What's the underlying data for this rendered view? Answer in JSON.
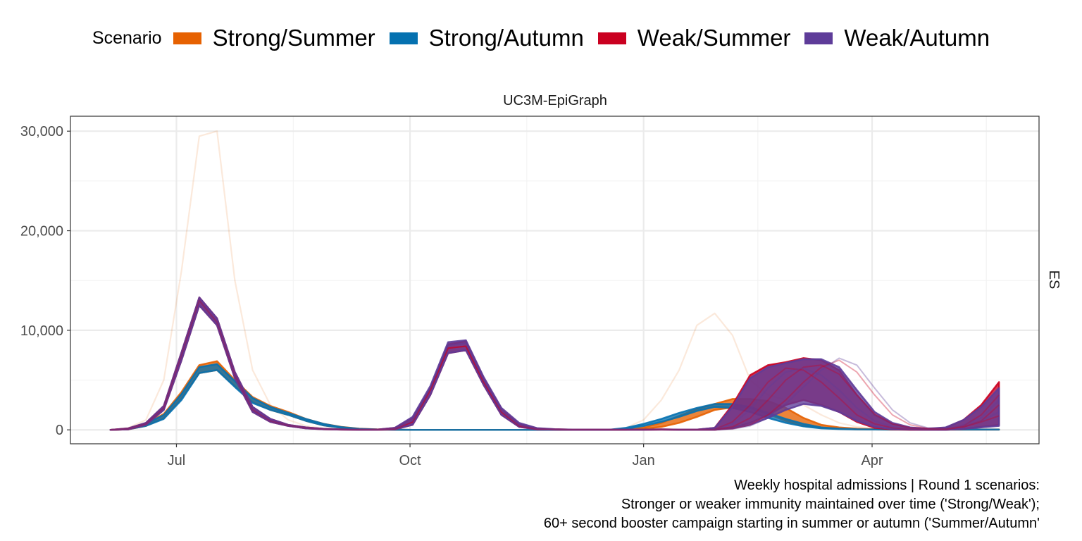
{
  "legend": {
    "title": "Scenario",
    "items": [
      {
        "label": "Strong/Summer",
        "color": "#e66101"
      },
      {
        "label": "Strong/Autumn",
        "color": "#0571b0"
      },
      {
        "label": "Weak/Summer",
        "color": "#ca0020"
      },
      {
        "label": "Weak/Autumn",
        "color": "#5e3c99"
      }
    ]
  },
  "chart_data": {
    "type": "line",
    "title": "UC3M-EpiGraph",
    "facet_right_label": "ES",
    "xlabel": "",
    "ylabel": "",
    "x_ticks": [
      "Jul",
      "Oct",
      "Jan",
      "Apr"
    ],
    "y_ticks": [
      "0",
      "10,000",
      "20,000",
      "30,000"
    ],
    "ylim": [
      -1400,
      31500
    ],
    "grid": true,
    "legend_position": "top",
    "x_start_date": "2022-06-05",
    "x_end_date": "2023-05-21",
    "week_count": 51,
    "series": [
      {
        "scenario": "Strong/Summer",
        "color": "#e66101",
        "type": "band",
        "lower": [
          0,
          50,
          400,
          1200,
          3200,
          5700,
          6000,
          4400,
          2800,
          2000,
          1500,
          900,
          450,
          200,
          80,
          30,
          10,
          0,
          0,
          0,
          0,
          0,
          0,
          0,
          0,
          0,
          0,
          0,
          0,
          0,
          100,
          300,
          700,
          1300,
          2000,
          2250,
          2200,
          1600,
          900,
          400,
          200,
          100,
          50,
          30,
          20,
          20,
          20,
          20,
          20,
          20,
          20
        ],
        "upper": [
          0,
          100,
          600,
          1600,
          3800,
          6500,
          6900,
          5000,
          3300,
          2400,
          1800,
          1100,
          600,
          300,
          120,
          50,
          20,
          0,
          0,
          0,
          0,
          0,
          0,
          0,
          0,
          0,
          0,
          0,
          0,
          0,
          250,
          700,
          1400,
          2100,
          2600,
          3100,
          3100,
          2900,
          2200,
          1200,
          500,
          250,
          120,
          60,
          40,
          40,
          40,
          40,
          40,
          40,
          40
        ]
      },
      {
        "scenario": "Strong/Autumn",
        "color": "#0571b0",
        "type": "band",
        "lower": [
          0,
          60,
          400,
          1100,
          3000,
          5700,
          6000,
          4300,
          2700,
          2000,
          1500,
          900,
          450,
          200,
          80,
          30,
          10,
          0,
          0,
          0,
          0,
          0,
          0,
          0,
          0,
          0,
          0,
          0,
          0,
          100,
          400,
          800,
          1300,
          1900,
          2300,
          2200,
          1800,
          1200,
          700,
          350,
          150,
          80,
          40,
          30,
          20,
          20,
          20,
          20,
          20,
          20,
          20
        ],
        "upper": [
          0,
          100,
          600,
          1500,
          3600,
          6300,
          6600,
          4900,
          3200,
          2300,
          1700,
          1100,
          600,
          280,
          110,
          40,
          20,
          0,
          0,
          0,
          0,
          0,
          0,
          0,
          0,
          0,
          0,
          0,
          0,
          200,
          600,
          1100,
          1700,
          2200,
          2600,
          2600,
          2300,
          1700,
          1100,
          600,
          250,
          120,
          60,
          40,
          30,
          30,
          30,
          30,
          30,
          30,
          30
        ]
      },
      {
        "scenario": "Weak/Summer",
        "color": "#ca0020",
        "type": "band",
        "lower": [
          0,
          50,
          500,
          2000,
          7000,
          12500,
          10500,
          5200,
          1800,
          800,
          400,
          150,
          60,
          20,
          10,
          10,
          50,
          500,
          3500,
          7700,
          8000,
          4500,
          1500,
          300,
          50,
          20,
          10,
          10,
          10,
          10,
          10,
          20,
          10,
          10,
          10,
          200,
          700,
          1500,
          2500,
          3000,
          2500,
          1800,
          800,
          200,
          50,
          10,
          10,
          10,
          100,
          300,
          500
        ],
        "upper": [
          0,
          150,
          700,
          2400,
          7800,
          13300,
          11200,
          5800,
          2300,
          1100,
          500,
          250,
          100,
          40,
          20,
          20,
          200,
          1200,
          4200,
          8600,
          8900,
          5200,
          2100,
          600,
          150,
          60,
          20,
          20,
          20,
          20,
          20,
          50,
          20,
          20,
          200,
          2500,
          5500,
          6500,
          6800,
          7200,
          7000,
          6000,
          3500,
          1500,
          600,
          200,
          100,
          200,
          1000,
          2500,
          4800
        ]
      },
      {
        "scenario": "Weak/Autumn",
        "color": "#5e3c99",
        "type": "band",
        "lower": [
          0,
          50,
          500,
          2000,
          7000,
          12500,
          10500,
          5200,
          1800,
          800,
          400,
          150,
          60,
          20,
          10,
          10,
          50,
          500,
          3500,
          7700,
          8000,
          4500,
          1500,
          300,
          50,
          20,
          10,
          10,
          10,
          10,
          10,
          20,
          10,
          10,
          10,
          150,
          500,
          1200,
          2000,
          2600,
          2400,
          1800,
          900,
          300,
          80,
          20,
          10,
          10,
          100,
          250,
          400
        ],
        "upper": [
          0,
          150,
          700,
          2400,
          7800,
          13300,
          11200,
          5800,
          2300,
          1100,
          500,
          250,
          100,
          40,
          20,
          20,
          200,
          1300,
          4400,
          8800,
          9000,
          5300,
          2200,
          700,
          180,
          70,
          20,
          20,
          20,
          20,
          20,
          50,
          20,
          20,
          200,
          2300,
          5200,
          6300,
          6700,
          7100,
          7100,
          6300,
          4000,
          1800,
          700,
          250,
          120,
          250,
          1000,
          2300,
          4200
        ]
      },
      {
        "scenario": "Strong/Summer",
        "color": "#e66101",
        "type": "outlier",
        "values": [
          0,
          200,
          1000,
          5000,
          16000,
          29500,
          30000,
          15000,
          6000,
          2500,
          1000,
          400,
          150,
          60,
          30,
          10,
          5,
          0,
          0,
          0,
          0,
          0,
          0,
          0,
          0,
          0,
          0,
          0,
          0,
          200,
          1000,
          3000,
          6000,
          10500,
          11700,
          9500,
          5000,
          3500,
          3000,
          2500,
          1500,
          700,
          300,
          150,
          80,
          40,
          20,
          10,
          10,
          10,
          10
        ]
      },
      {
        "scenario": "Weak/Summer",
        "color": "#ca0020",
        "type": "line",
        "values": [
          0,
          100,
          600,
          2200,
          7500,
          13000,
          10800,
          5500,
          2000,
          900,
          450,
          200,
          80,
          30,
          15,
          15,
          100,
          800,
          4000,
          8200,
          8400,
          4800,
          1800,
          400,
          80,
          30,
          15,
          15,
          15,
          15,
          15,
          30,
          15,
          15,
          50,
          800,
          2500,
          4800,
          6200,
          6000,
          4800,
          3200,
          1500,
          600,
          200,
          60,
          30,
          60,
          300,
          800,
          1400
        ]
      },
      {
        "scenario": "Weak/Summer",
        "color": "#ca0020",
        "type": "line",
        "values": [
          0,
          100,
          600,
          2200,
          7500,
          13000,
          10800,
          5500,
          2000,
          900,
          450,
          200,
          80,
          30,
          15,
          15,
          100,
          800,
          4000,
          8200,
          8400,
          4800,
          1800,
          400,
          80,
          30,
          15,
          15,
          15,
          15,
          15,
          30,
          15,
          15,
          20,
          300,
          1200,
          3000,
          5000,
          6300,
          6500,
          5600,
          3500,
          1600,
          600,
          200,
          80,
          80,
          300,
          900,
          2500
        ]
      },
      {
        "scenario": "Weak/Summer",
        "color": "#ca0020",
        "type": "line",
        "values": [
          0,
          100,
          600,
          2200,
          7500,
          13000,
          10800,
          5500,
          2000,
          900,
          450,
          200,
          80,
          30,
          15,
          15,
          100,
          800,
          4000,
          8200,
          8400,
          4800,
          1800,
          400,
          80,
          30,
          15,
          15,
          15,
          15,
          15,
          30,
          15,
          15,
          15,
          100,
          500,
          1500,
          3000,
          4800,
          6300,
          7000,
          5800,
          3500,
          1500,
          500,
          150,
          100,
          400,
          1500,
          3500
        ]
      },
      {
        "scenario": "Weak/Autumn",
        "color": "#5e3c99",
        "type": "line",
        "values": [
          0,
          100,
          600,
          2200,
          7500,
          13000,
          10800,
          5500,
          2000,
          900,
          450,
          200,
          80,
          30,
          15,
          15,
          120,
          900,
          4200,
          8500,
          8700,
          5000,
          1900,
          450,
          90,
          30,
          15,
          15,
          15,
          15,
          15,
          30,
          15,
          15,
          15,
          80,
          400,
          1200,
          2600,
          4300,
          6000,
          7200,
          6500,
          4200,
          2000,
          700,
          200,
          150,
          500,
          1200,
          3000
        ]
      },
      {
        "scenario": "Weak/Autumn",
        "color": "#5e3c99",
        "type": "line",
        "values": [
          0,
          100,
          600,
          2200,
          7500,
          13000,
          10800,
          5500,
          2000,
          900,
          450,
          200,
          80,
          30,
          15,
          15,
          120,
          900,
          4200,
          8500,
          8700,
          5000,
          1900,
          450,
          90,
          30,
          15,
          15,
          15,
          15,
          15,
          30,
          15,
          15,
          40,
          600,
          2000,
          4200,
          5800,
          6200,
          5500,
          4000,
          2200,
          900,
          300,
          80,
          40,
          80,
          350,
          900,
          1800
        ]
      }
    ]
  },
  "caption": {
    "line1": "Weekly hospital admissions | Round 1 scenarios:",
    "line2": "Stronger or weaker immunity maintained over time ('Strong/Weak');",
    "line3": "60+ second booster campaign starting in summer or autumn ('Summer/Autumn'"
  }
}
